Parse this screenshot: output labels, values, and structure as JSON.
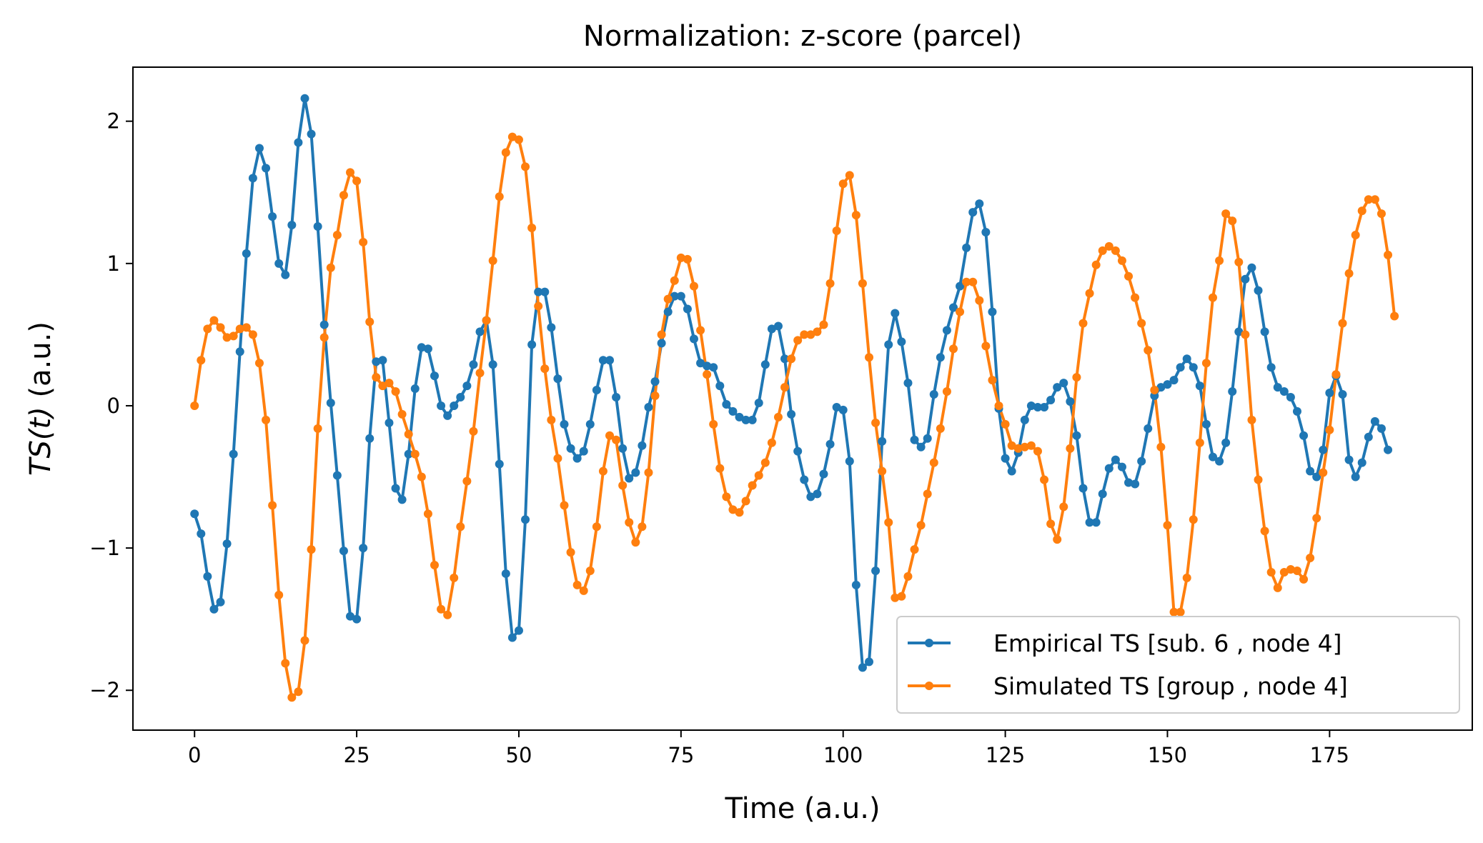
{
  "chart_data": {
    "type": "line",
    "title": "Normalization: z-score (parcel)",
    "xlabel": "Time (a.u.)",
    "ylabel_italic": "TS(t)",
    "ylabel_rest": " (a.u.)",
    "xlim": [
      -9.5,
      197
    ],
    "ylim": [
      -2.28,
      2.38
    ],
    "xticks": [
      0,
      25,
      50,
      75,
      100,
      125,
      150,
      175
    ],
    "xtick_labels": [
      "0",
      "25",
      "50",
      "75",
      "100",
      "125",
      "150",
      "175"
    ],
    "yticks": [
      -2,
      -1,
      0,
      1,
      2
    ],
    "ytick_labels": [
      "−2",
      "−1",
      "0",
      "1",
      "2"
    ],
    "grid": false,
    "legend_position": "lower-right",
    "colors": {
      "empirical": "#1f77b4",
      "simulated": "#ff7f0e"
    },
    "series": [
      {
        "name": "Empirical TS [sub. 6 , node 4]",
        "color": "#1f77b4",
        "values": [
          -0.76,
          -0.9,
          -1.2,
          -1.43,
          -1.38,
          -0.97,
          -0.34,
          0.38,
          1.07,
          1.6,
          1.81,
          1.67,
          1.33,
          1.0,
          0.92,
          1.27,
          1.85,
          2.16,
          1.91,
          1.26,
          0.57,
          0.02,
          -0.49,
          -1.02,
          -1.48,
          -1.5,
          -1.0,
          -0.23,
          0.31,
          0.32,
          -0.12,
          -0.58,
          -0.66,
          -0.34,
          0.12,
          0.41,
          0.4,
          0.21,
          0.0,
          -0.07,
          0.0,
          0.06,
          0.14,
          0.29,
          0.52,
          0.6,
          0.29,
          -0.41,
          -1.18,
          -1.63,
          -1.58,
          -0.8,
          0.43,
          0.8,
          0.8,
          0.55,
          0.19,
          -0.13,
          -0.3,
          -0.37,
          -0.32,
          -0.13,
          0.11,
          0.32,
          0.32,
          0.06,
          -0.3,
          -0.51,
          -0.47,
          -0.28,
          -0.01,
          0.17,
          0.44,
          0.66,
          0.77,
          0.77,
          0.68,
          0.47,
          0.3,
          0.28,
          0.27,
          0.14,
          0.01,
          -0.04,
          -0.08,
          -0.1,
          -0.1,
          0.02,
          0.29,
          0.54,
          0.56,
          0.33,
          -0.06,
          -0.32,
          -0.52,
          -0.64,
          -0.62,
          -0.48,
          -0.27,
          -0.01,
          -0.03,
          -0.39,
          -1.26,
          -1.84,
          -1.8,
          -1.16,
          -0.25,
          0.43,
          0.65,
          0.45,
          0.16,
          -0.24,
          -0.29,
          -0.23,
          0.08,
          0.34,
          0.53,
          0.69,
          0.84,
          1.11,
          1.36,
          1.42,
          1.22,
          0.66,
          -0.02,
          -0.37,
          -0.46,
          -0.33,
          -0.1,
          0.0,
          -0.01,
          -0.01,
          0.04,
          0.13,
          0.16,
          0.03,
          -0.21,
          -0.58,
          -0.82,
          -0.82,
          -0.62,
          -0.44,
          -0.38,
          -0.43,
          -0.54,
          -0.55,
          -0.39,
          -0.16,
          0.07,
          0.13,
          0.15,
          0.18,
          0.27,
          0.33,
          0.27,
          0.14,
          -0.13,
          -0.36,
          -0.39,
          -0.26,
          0.1,
          0.52,
          0.89,
          0.97,
          0.81,
          0.52,
          0.27,
          0.13,
          0.1,
          0.06,
          -0.04,
          -0.21,
          -0.46,
          -0.5,
          -0.31,
          0.09,
          0.21,
          0.08,
          -0.38,
          -0.5,
          -0.4,
          -0.22,
          -0.11,
          -0.16,
          -0.31
        ]
      },
      {
        "name": "Simulated TS [group , node 4]",
        "color": "#ff7f0e",
        "values": [
          0.0,
          0.32,
          0.54,
          0.6,
          0.55,
          0.48,
          0.49,
          0.54,
          0.55,
          0.5,
          0.3,
          -0.1,
          -0.7,
          -1.33,
          -1.81,
          -2.05,
          -2.01,
          -1.65,
          -1.01,
          -0.16,
          0.48,
          0.97,
          1.2,
          1.48,
          1.64,
          1.58,
          1.15,
          0.59,
          0.2,
          0.14,
          0.16,
          0.1,
          -0.06,
          -0.2,
          -0.34,
          -0.5,
          -0.76,
          -1.12,
          -1.43,
          -1.47,
          -1.21,
          -0.85,
          -0.53,
          -0.18,
          0.23,
          0.6,
          1.02,
          1.47,
          1.78,
          1.89,
          1.87,
          1.68,
          1.25,
          0.7,
          0.26,
          -0.1,
          -0.37,
          -0.7,
          -1.03,
          -1.26,
          -1.3,
          -1.16,
          -0.85,
          -0.46,
          -0.21,
          -0.24,
          -0.56,
          -0.82,
          -0.96,
          -0.85,
          -0.47,
          0.07,
          0.5,
          0.75,
          0.88,
          1.04,
          1.03,
          0.84,
          0.53,
          0.22,
          -0.13,
          -0.44,
          -0.64,
          -0.73,
          -0.75,
          -0.67,
          -0.56,
          -0.49,
          -0.4,
          -0.26,
          -0.08,
          0.13,
          0.33,
          0.46,
          0.5,
          0.5,
          0.52,
          0.57,
          0.86,
          1.23,
          1.56,
          1.62,
          1.34,
          0.86,
          0.34,
          -0.12,
          -0.46,
          -0.82,
          -1.35,
          -1.34,
          -1.2,
          -1.01,
          -0.84,
          -0.62,
          -0.4,
          -0.16,
          0.1,
          0.4,
          0.66,
          0.87,
          0.87,
          0.74,
          0.42,
          0.18,
          0.0,
          -0.13,
          -0.28,
          -0.3,
          -0.29,
          -0.28,
          -0.32,
          -0.52,
          -0.83,
          -0.94,
          -0.71,
          -0.3,
          0.2,
          0.58,
          0.79,
          0.99,
          1.09,
          1.12,
          1.09,
          1.02,
          0.91,
          0.76,
          0.58,
          0.39,
          0.11,
          -0.29,
          -0.84,
          -1.45,
          -1.45,
          -1.21,
          -0.8,
          -0.26,
          0.3,
          0.76,
          1.02,
          1.35,
          1.3,
          1.01,
          0.5,
          -0.1,
          -0.52,
          -0.88,
          -1.17,
          -1.28,
          -1.17,
          -1.15,
          -1.16,
          -1.22,
          -1.07,
          -0.79,
          -0.47,
          -0.17,
          0.22,
          0.58,
          0.93,
          1.2,
          1.37,
          1.45,
          1.45,
          1.35,
          1.06,
          0.63
        ]
      }
    ]
  }
}
